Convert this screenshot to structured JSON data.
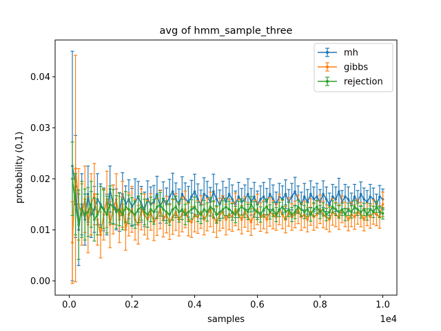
{
  "chart_data": {
    "type": "line",
    "title": "avg of hmm_sample_three",
    "xlabel": "samples",
    "ylabel": "probability (0,1)",
    "x_offset_label": "1e4",
    "xlim": [
      -0.045,
      1.045
    ],
    "ylim": [
      -0.0028,
      0.0472
    ],
    "x_ticks": [
      0.0,
      0.2,
      0.4,
      0.6,
      0.8,
      1.0
    ],
    "x_tick_labels": [
      "0.0",
      "0.2",
      "0.4",
      "0.6",
      "0.8",
      "1.0"
    ],
    "y_ticks": [
      0.0,
      0.01,
      0.02,
      0.03,
      0.04
    ],
    "y_tick_labels": [
      "0.00",
      "0.01",
      "0.02",
      "0.03",
      "0.04"
    ],
    "grid": false,
    "legend_position": "upper right",
    "error_bars": true,
    "x_start": 0.01,
    "x_step": 0.01,
    "series": [
      {
        "name": "mh",
        "color": "#1f77b4",
        "values": [
          0.0225,
          0.0185,
          0.01,
          0.015,
          0.012,
          0.017,
          0.013,
          0.014,
          0.016,
          0.015,
          0.014,
          0.013,
          0.018,
          0.015,
          0.014,
          0.0135,
          0.017,
          0.015,
          0.016,
          0.0145,
          0.0155,
          0.0165,
          0.015,
          0.014,
          0.016,
          0.015,
          0.0155,
          0.017,
          0.0145,
          0.016,
          0.015,
          0.0165,
          0.0175,
          0.016,
          0.015,
          0.017,
          0.016,
          0.0155,
          0.0165,
          0.0175,
          0.016,
          0.015,
          0.017,
          0.0165,
          0.0155,
          0.0175,
          0.016,
          0.015,
          0.0165,
          0.0155,
          0.017,
          0.016,
          0.015,
          0.0165,
          0.0155,
          0.016,
          0.017,
          0.0155,
          0.0165,
          0.015,
          0.016,
          0.0165,
          0.0155,
          0.017,
          0.016,
          0.015,
          0.0165,
          0.016,
          0.017,
          0.0155,
          0.0165,
          0.0175,
          0.016,
          0.015,
          0.0165,
          0.0155,
          0.017,
          0.016,
          0.0165,
          0.0155,
          0.017,
          0.016,
          0.015,
          0.0165,
          0.016,
          0.0175,
          0.0155,
          0.0165,
          0.016,
          0.015,
          0.0165,
          0.0155,
          0.017,
          0.016,
          0.0155,
          0.0165,
          0.016,
          0.015,
          0.0165,
          0.016
        ],
        "errors": [
          0.0225,
          0.01,
          0.007,
          0.006,
          0.005,
          0.0055,
          0.0045,
          0.0045,
          0.005,
          0.004,
          0.0042,
          0.004,
          0.0045,
          0.0038,
          0.004,
          0.0038,
          0.0042,
          0.0036,
          0.0038,
          0.0036,
          0.0045,
          0.003,
          0.0035,
          0.0034,
          0.0036,
          0.0034,
          0.0032,
          0.0035,
          0.0032,
          0.0034,
          0.0032,
          0.0034,
          0.0036,
          0.0032,
          0.003,
          0.0034,
          0.0032,
          0.003,
          0.0032,
          0.0034,
          0.003,
          0.0028,
          0.0032,
          0.003,
          0.0028,
          0.0034,
          0.003,
          0.0028,
          0.003,
          0.0028,
          0.003,
          0.0028,
          0.0026,
          0.0028,
          0.0026,
          0.0028,
          0.003,
          0.0026,
          0.0028,
          0.0026,
          0.0026,
          0.0028,
          0.0026,
          0.003,
          0.0028,
          0.0024,
          0.0026,
          0.0026,
          0.0028,
          0.0024,
          0.0026,
          0.0028,
          0.0026,
          0.0024,
          0.0026,
          0.0024,
          0.0026,
          0.0024,
          0.0026,
          0.0024,
          0.0026,
          0.0024,
          0.0022,
          0.0024,
          0.0024,
          0.0026,
          0.0022,
          0.0024,
          0.0024,
          0.0022,
          0.0024,
          0.0022,
          0.0024,
          0.0022,
          0.0022,
          0.0024,
          0.0022,
          0.002,
          0.0022,
          0.002
        ]
      },
      {
        "name": "gibbs",
        "color": "#ff7f0e",
        "values": [
          0.0075,
          0.022,
          0.015,
          0.013,
          0.016,
          0.011,
          0.015,
          0.017,
          0.012,
          0.009,
          0.013,
          0.016,
          0.011,
          0.014,
          0.016,
          0.012,
          0.015,
          0.01,
          0.013,
          0.014,
          0.012,
          0.011,
          0.014,
          0.013,
          0.012,
          0.0135,
          0.0115,
          0.0125,
          0.014,
          0.012,
          0.013,
          0.0115,
          0.0125,
          0.0135,
          0.012,
          0.013,
          0.014,
          0.012,
          0.0115,
          0.013,
          0.0125,
          0.0135,
          0.012,
          0.013,
          0.014,
          0.0125,
          0.0115,
          0.013,
          0.0135,
          0.012,
          0.013,
          0.0125,
          0.014,
          0.013,
          0.012,
          0.0135,
          0.0125,
          0.0115,
          0.013,
          0.014,
          0.0125,
          0.013,
          0.012,
          0.0135,
          0.013,
          0.0125,
          0.014,
          0.013,
          0.012,
          0.0135,
          0.0125,
          0.013,
          0.014,
          0.0125,
          0.013,
          0.012,
          0.0135,
          0.0125,
          0.013,
          0.014,
          0.013,
          0.0125,
          0.012,
          0.0135,
          0.013,
          0.0125,
          0.014,
          0.013,
          0.012,
          0.013,
          0.0125,
          0.0135,
          0.013,
          0.012,
          0.013,
          0.0125,
          0.0135,
          0.013,
          0.0125,
          0.015
        ],
        "errors": [
          0.008,
          0.0222,
          0.007,
          0.006,
          0.0065,
          0.0055,
          0.006,
          0.006,
          0.005,
          0.0045,
          0.005,
          0.0055,
          0.0045,
          0.0048,
          0.005,
          0.0045,
          0.0045,
          0.004,
          0.0042,
          0.0045,
          0.004,
          0.0038,
          0.004,
          0.004,
          0.0038,
          0.0036,
          0.0036,
          0.0036,
          0.0038,
          0.0034,
          0.0036,
          0.0034,
          0.0034,
          0.0036,
          0.0032,
          0.0034,
          0.0036,
          0.0032,
          0.003,
          0.0034,
          0.0032,
          0.0032,
          0.003,
          0.0032,
          0.0034,
          0.003,
          0.003,
          0.0032,
          0.0032,
          0.003,
          0.003,
          0.0028,
          0.0032,
          0.003,
          0.0028,
          0.003,
          0.0028,
          0.0026,
          0.0028,
          0.003,
          0.0028,
          0.0028,
          0.0026,
          0.0028,
          0.0028,
          0.0026,
          0.003,
          0.0028,
          0.0026,
          0.0028,
          0.0026,
          0.0026,
          0.0028,
          0.0026,
          0.0026,
          0.0024,
          0.0026,
          0.0026,
          0.0026,
          0.0028,
          0.0026,
          0.0024,
          0.0024,
          0.0026,
          0.0024,
          0.0024,
          0.0026,
          0.0024,
          0.0022,
          0.0024,
          0.0024,
          0.0024,
          0.0024,
          0.0022,
          0.0022,
          0.0022,
          0.0024,
          0.0022,
          0.0022,
          0.0024
        ]
      },
      {
        "name": "rejection",
        "color": "#2ca02c",
        "values": [
          0.02,
          0.015,
          0.011,
          0.014,
          0.013,
          0.0135,
          0.015,
          0.012,
          0.013,
          0.0145,
          0.014,
          0.013,
          0.015,
          0.0145,
          0.0135,
          0.014,
          0.013,
          0.0145,
          0.014,
          0.0135,
          0.013,
          0.014,
          0.0145,
          0.0135,
          0.013,
          0.014,
          0.0135,
          0.0145,
          0.015,
          0.014,
          0.0135,
          0.013,
          0.014,
          0.0145,
          0.0135,
          0.014,
          0.013,
          0.0135,
          0.014,
          0.0145,
          0.0135,
          0.013,
          0.014,
          0.0135,
          0.0145,
          0.014,
          0.013,
          0.0135,
          0.014,
          0.0145,
          0.014,
          0.0135,
          0.013,
          0.014,
          0.0145,
          0.014,
          0.0135,
          0.015,
          0.014,
          0.0135,
          0.013,
          0.014,
          0.0145,
          0.0135,
          0.014,
          0.013,
          0.014,
          0.0145,
          0.0135,
          0.014,
          0.013,
          0.0135,
          0.0145,
          0.014,
          0.0135,
          0.014,
          0.013,
          0.014,
          0.0145,
          0.0135,
          0.014,
          0.013,
          0.0135,
          0.0145,
          0.014,
          0.0135,
          0.014,
          0.013,
          0.014,
          0.0135,
          0.0145,
          0.014,
          0.0135,
          0.014,
          0.013,
          0.014,
          0.0135,
          0.0145,
          0.0135,
          0.0132
        ],
        "errors": [
          0.0072,
          0.006,
          0.0068,
          0.0055,
          0.005,
          0.0048,
          0.0045,
          0.0042,
          0.004,
          0.004,
          0.0038,
          0.0036,
          0.0036,
          0.0034,
          0.0032,
          0.0032,
          0.003,
          0.003,
          0.0028,
          0.0028,
          0.0027,
          0.0026,
          0.0026,
          0.0025,
          0.0025,
          0.0024,
          0.0024,
          0.0023,
          0.0023,
          0.0022,
          0.0022,
          0.0021,
          0.0021,
          0.0021,
          0.002,
          0.002,
          0.002,
          0.0019,
          0.0019,
          0.0019,
          0.0019,
          0.0018,
          0.0018,
          0.0018,
          0.0018,
          0.0017,
          0.0017,
          0.0017,
          0.0017,
          0.0017,
          0.0016,
          0.0016,
          0.0016,
          0.0016,
          0.0016,
          0.0016,
          0.0015,
          0.0015,
          0.0015,
          0.0015,
          0.0015,
          0.0015,
          0.0015,
          0.0014,
          0.0014,
          0.0014,
          0.0014,
          0.0014,
          0.0014,
          0.0014,
          0.0014,
          0.0013,
          0.0013,
          0.0013,
          0.0013,
          0.0013,
          0.0013,
          0.0013,
          0.0013,
          0.0013,
          0.0013,
          0.0012,
          0.0012,
          0.0012,
          0.0012,
          0.0012,
          0.0012,
          0.0012,
          0.0012,
          0.0012,
          0.0012,
          0.0012,
          0.0012,
          0.0012,
          0.0011,
          0.0011,
          0.0011,
          0.0011,
          0.0011,
          0.0011
        ]
      }
    ]
  }
}
